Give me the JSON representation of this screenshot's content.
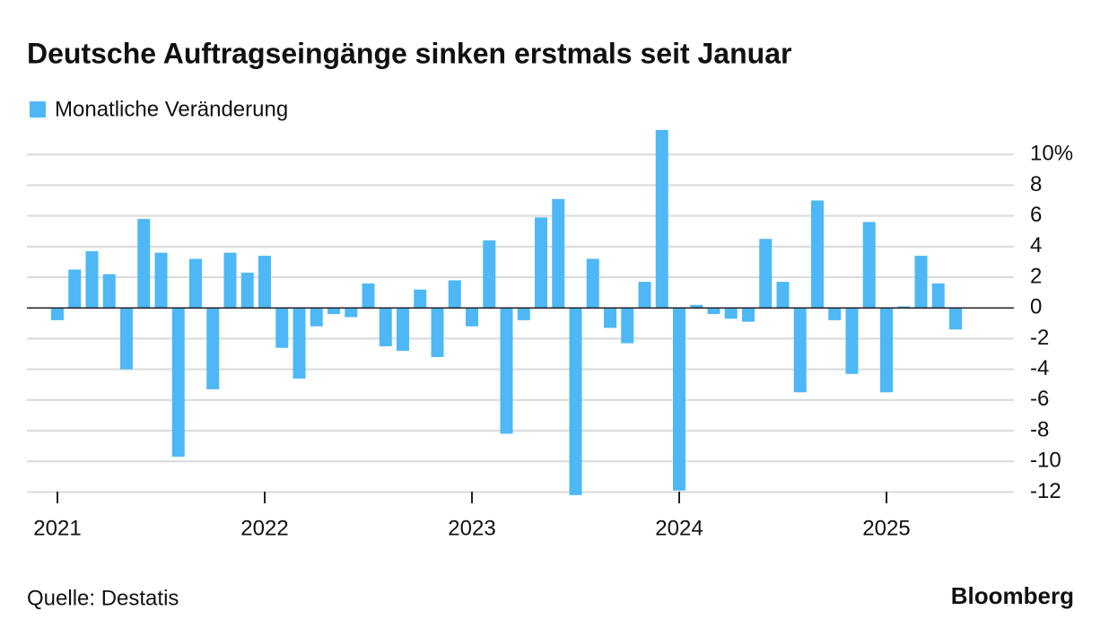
{
  "chart_data": {
    "type": "bar",
    "title": "Deutsche Auftragseingänge sinken erstmals seit Januar",
    "source": "Quelle: Destatis",
    "brand": "Bloomberg",
    "categories": [
      "2021",
      null,
      null,
      null,
      null,
      null,
      null,
      null,
      null,
      null,
      null,
      null,
      "2022",
      null,
      null,
      null,
      null,
      null,
      null,
      null,
      null,
      null,
      null,
      null,
      "2023",
      null,
      null,
      null,
      null,
      null,
      null,
      null,
      null,
      null,
      null,
      null,
      "2024",
      null,
      null,
      null,
      null,
      null,
      null,
      null,
      null,
      null,
      null,
      null,
      "2025",
      null,
      null,
      null,
      null
    ],
    "series": [
      {
        "name": "Monatliche Veränderung",
        "color": "#4db8f5",
        "values": [
          -0.8,
          2.5,
          3.7,
          2.2,
          -4.0,
          5.8,
          3.6,
          -9.7,
          3.2,
          -5.3,
          3.6,
          2.3,
          3.4,
          -2.6,
          -4.6,
          -1.2,
          -0.4,
          -0.6,
          1.6,
          -2.5,
          -2.8,
          1.2,
          -3.2,
          1.8,
          -1.2,
          4.4,
          -8.2,
          -0.8,
          5.9,
          7.1,
          -12.2,
          3.2,
          -1.3,
          -2.3,
          1.7,
          11.6,
          -11.9,
          0.2,
          -0.4,
          -0.7,
          -0.9,
          4.5,
          1.7,
          -5.5,
          7.0,
          -0.8,
          -4.3,
          5.6,
          -5.5,
          0.1,
          3.4,
          1.6,
          -1.4
        ]
      }
    ],
    "ylim": [
      -12.5,
      12
    ],
    "yticks": [
      {
        "value": 10,
        "label": "10%"
      },
      8,
      6,
      4,
      2,
      0,
      -2,
      -4,
      -6,
      -8,
      -10,
      -12
    ],
    "grid": true
  }
}
